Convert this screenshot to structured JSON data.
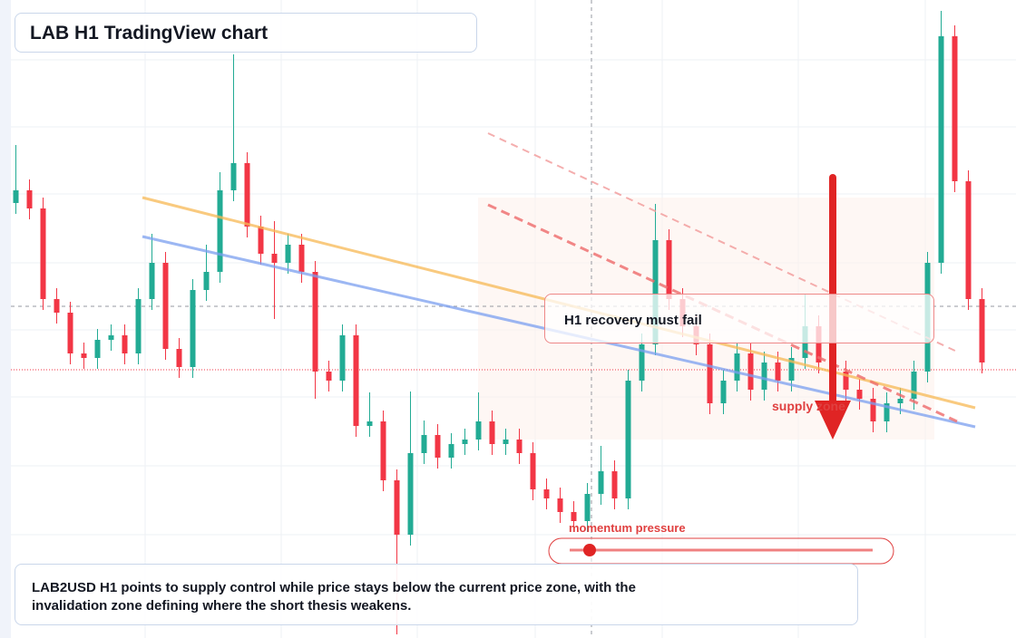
{
  "chart_data": {
    "type": "candlestick",
    "title": "LAB H1 TradingView chart",
    "annotations": [
      "H1 recovery must fail",
      "supply zone",
      "momentum pressure"
    ],
    "caption": "LAB2USD H1 points to supply control while price stays below the current price zone, with the invalidation zone defining where the short thesis weakens.",
    "up_color": "#22ab94",
    "down_color": "#f23645",
    "ylim": [
      0,
      704
    ],
    "open": [
      480,
      494,
      474,
      374,
      359,
      314,
      309,
      329,
      334,
      314,
      374,
      414,
      319,
      299,
      384,
      404,
      494,
      524,
      454,
      424,
      414,
      434,
      404,
      294,
      284,
      334,
      234,
      239,
      174,
      114,
      204,
      224,
      199,
      214,
      219,
      239,
      214,
      219,
      204,
      164,
      154,
      139,
      129,
      159,
      184,
      154,
      284,
      324,
      439,
      374,
      344,
      324,
      259,
      284,
      314,
      274,
      304,
      284,
      309,
      344,
      304,
      294,
      274,
      264,
      239,
      259,
      264,
      294,
      414,
      664,
      504,
      374
    ],
    "high": [
      544,
      506,
      486,
      386,
      371,
      326,
      341,
      346,
      346,
      386,
      446,
      426,
      331,
      396,
      434,
      514,
      644,
      536,
      466,
      460,
      446,
      446,
      416,
      306,
      346,
      346,
      271,
      251,
      186,
      272,
      240,
      236,
      226,
      231,
      271,
      251,
      231,
      231,
      216,
      176,
      166,
      151,
      171,
      212,
      196,
      296,
      336,
      479,
      451,
      386,
      356,
      336,
      296,
      326,
      326,
      316,
      316,
      321,
      380,
      356,
      316,
      306,
      286,
      276,
      271,
      276,
      306,
      426,
      692,
      676,
      516,
      386
    ],
    "low": [
      468,
      462,
      362,
      347,
      302,
      297,
      297,
      317,
      302,
      302,
      362,
      307,
      287,
      287,
      372,
      392,
      482,
      442,
      412,
      352,
      402,
      392,
      264,
      272,
      272,
      222,
      222,
      162,
      4,
      102,
      192,
      187,
      187,
      202,
      207,
      202,
      202,
      192,
      152,
      142,
      127,
      117,
      117,
      147,
      142,
      142,
      272,
      312,
      362,
      332,
      312,
      247,
      247,
      272,
      262,
      262,
      272,
      272,
      297,
      292,
      282,
      262,
      252,
      227,
      227,
      247,
      252,
      282,
      402,
      492,
      362,
      292
    ],
    "close": [
      494,
      474,
      374,
      359,
      314,
      309,
      329,
      334,
      314,
      374,
      414,
      319,
      299,
      384,
      404,
      494,
      524,
      454,
      424,
      414,
      434,
      404,
      294,
      284,
      334,
      234,
      239,
      174,
      114,
      204,
      224,
      199,
      214,
      219,
      239,
      214,
      219,
      204,
      164,
      154,
      139,
      129,
      159,
      184,
      154,
      284,
      324,
      439,
      374,
      344,
      324,
      259,
      284,
      314,
      274,
      304,
      284,
      309,
      344,
      304,
      294,
      274,
      264,
      239,
      259,
      264,
      294,
      414,
      664,
      504,
      374,
      304
    ]
  }
}
